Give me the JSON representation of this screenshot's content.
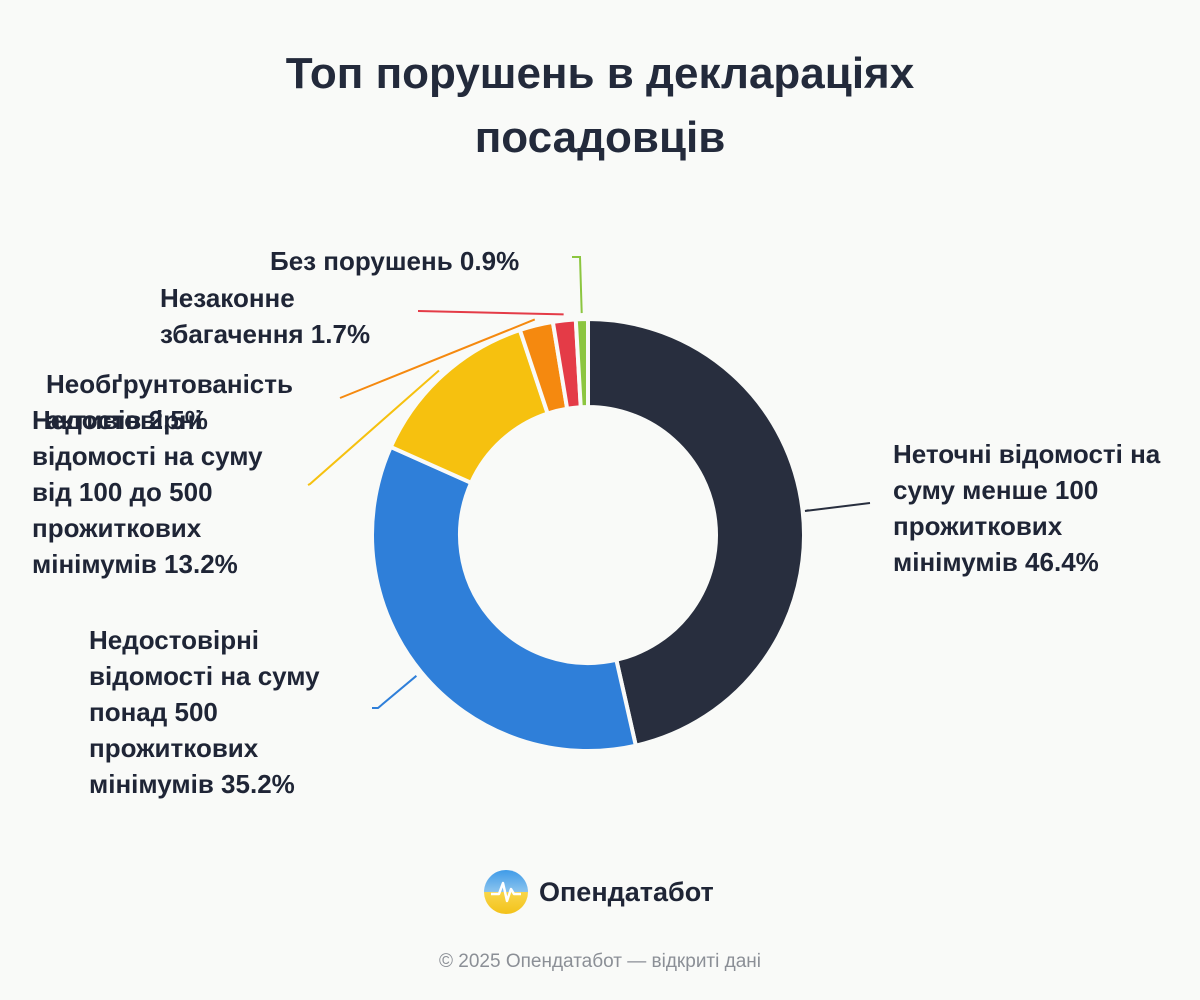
{
  "title_lines": [
    "Топ порушень в деклараціях",
    "посадовців"
  ],
  "chart_data": {
    "type": "pie",
    "title": "Топ порушень в деклараціях посадовців",
    "donut": true,
    "slices": [
      {
        "label": "Неточні відомості на суму менше 100 прожиткових мінімумів",
        "value": 46.4,
        "display": "Неточні відомості на суму менше 100 прожиткових мінімумів 46.4%",
        "color": "#282e3e"
      },
      {
        "label": "Недостовірні відомості на суму понад 500 прожиткових мінімумів",
        "value": 35.2,
        "display": "Недостовірні відомості на суму понад 500 прожиткових мінімумів 35.2%",
        "color": "#2f7fd9"
      },
      {
        "label": "Недостовірні відомості на суму від 100 до 500 прожиткових мінімумів",
        "value": 13.2,
        "display": "Недостовірні відомості на суму від 100 до 500 прожиткових мінімумів 13.2%",
        "color": "#f6c10f"
      },
      {
        "label": "Необґрунтованість активів",
        "value": 2.5,
        "display": "Необґрунтованість активів 2.5%",
        "color": "#f5890f"
      },
      {
        "label": "Незаконне збагачення",
        "value": 1.7,
        "display": "Незаконне збагачення 1.7%",
        "color": "#e43b47"
      },
      {
        "label": "Без порушень",
        "value": 0.9,
        "display": "Без порушень 0.9%",
        "color": "#8cc63f"
      }
    ]
  },
  "brand": {
    "name": "Опендатабот",
    "icon": "opendatabot-logo-icon"
  },
  "footer": "© 2025 Опендатабот — відкриті дані"
}
